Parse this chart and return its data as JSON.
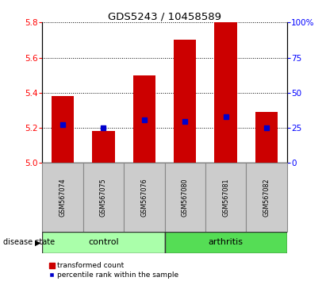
{
  "title": "GDS5243 / 10458589",
  "samples": [
    "GSM567074",
    "GSM567075",
    "GSM567076",
    "GSM567080",
    "GSM567081",
    "GSM567082"
  ],
  "bar_tops": [
    5.38,
    5.18,
    5.5,
    5.7,
    5.8,
    5.29
  ],
  "bar_base": 5.0,
  "blue_dots": [
    5.22,
    5.2,
    5.245,
    5.235,
    5.265,
    5.2
  ],
  "ylim": [
    5.0,
    5.8
  ],
  "yticks_left": [
    5.0,
    5.2,
    5.4,
    5.6,
    5.8
  ],
  "yticks_right": [
    0,
    25,
    50,
    75,
    100
  ],
  "right_ylim": [
    0,
    100
  ],
  "bar_color": "#cc0000",
  "dot_color": "#0000cc",
  "control_color": "#aaffaa",
  "arthritis_color": "#55dd55",
  "label_bg_color": "#cccccc",
  "control_label": "control",
  "arthritis_label": "arthritis",
  "disease_label": "disease state",
  "legend_red": "transformed count",
  "legend_blue": "percentile rank within the sample",
  "bar_width": 0.55
}
